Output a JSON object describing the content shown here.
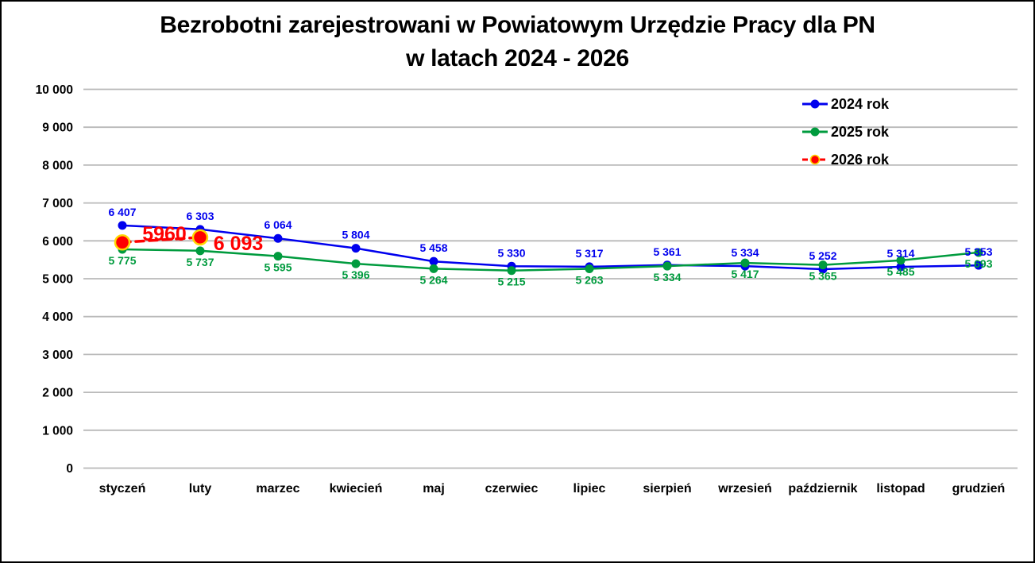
{
  "title": {
    "line1": "Bezrobotni zarejestrowani w Powiatowym Urzędzie Pracy dla PN",
    "line2": "w latach 2024 - 2026"
  },
  "chart_data": {
    "type": "line",
    "categories": [
      "styczeń",
      "luty",
      "marzec",
      "kwiecień",
      "maj",
      "czerwiec",
      "lipiec",
      "sierpień",
      "wrzesień",
      "październik",
      "listopad",
      "grudzień"
    ],
    "ylim": [
      0,
      10000
    ],
    "ytick_step": 1000,
    "ytick_labels": [
      "0",
      "1 000",
      "2 000",
      "3 000",
      "4 000",
      "5 000",
      "6 000",
      "7 000",
      "8 000",
      "9 000",
      "10 000"
    ],
    "grid": true,
    "grid_color": "#b9b9b9",
    "legend_position": "top-right",
    "series": [
      {
        "name": "2024 rok",
        "color": "#0000ee",
        "line_style": "solid",
        "marker": {
          "radius": 5.5,
          "fill": "#0000ee"
        },
        "values": [
          6407,
          6303,
          6064,
          5804,
          5458,
          5330,
          5317,
          5361,
          5334,
          5252,
          5314,
          5353
        ],
        "labels": [
          "6 407",
          "6 303",
          "6 064",
          "5 804",
          "5 458",
          "5 330",
          "5 317",
          "5 361",
          "5 334",
          "5 252",
          "5 314",
          "5 353"
        ],
        "label_position": "above",
        "label_font_px": 14
      },
      {
        "name": "2025 rok",
        "color": "#009b3e",
        "line_style": "solid",
        "marker": {
          "radius": 5.5,
          "fill": "#009b3e"
        },
        "values": [
          5775,
          5737,
          5595,
          5396,
          5264,
          5215,
          5263,
          5334,
          5417,
          5365,
          5485,
          5693
        ],
        "labels": [
          "5 775",
          "5 737",
          "5 595",
          "5 396",
          "5 264",
          "5 215",
          "5 263",
          "5 334",
          "5 417",
          "5 365",
          "5 485",
          "5 693"
        ],
        "label_position": "below",
        "label_font_px": 14
      },
      {
        "name": "2026 rok",
        "color": "#ff0000",
        "line_style": "dashed",
        "marker": {
          "radius": 9,
          "fill": "#ff0000",
          "stroke": "#ffd700",
          "stroke_width": 2.5
        },
        "values": [
          5960,
          6093,
          null,
          null,
          null,
          null,
          null,
          null,
          null,
          null,
          null,
          null
        ],
        "labels": [
          "5960",
          "6 093",
          null,
          null,
          null,
          null,
          null,
          null,
          null,
          null,
          null,
          null
        ],
        "label_position": "custom",
        "label_placements": [
          {
            "dx": 53,
            "dy": -2,
            "anchor": "middle"
          },
          {
            "dx": 48,
            "dy": 16,
            "anchor": "middle"
          }
        ],
        "label_font_px": 25
      }
    ]
  }
}
